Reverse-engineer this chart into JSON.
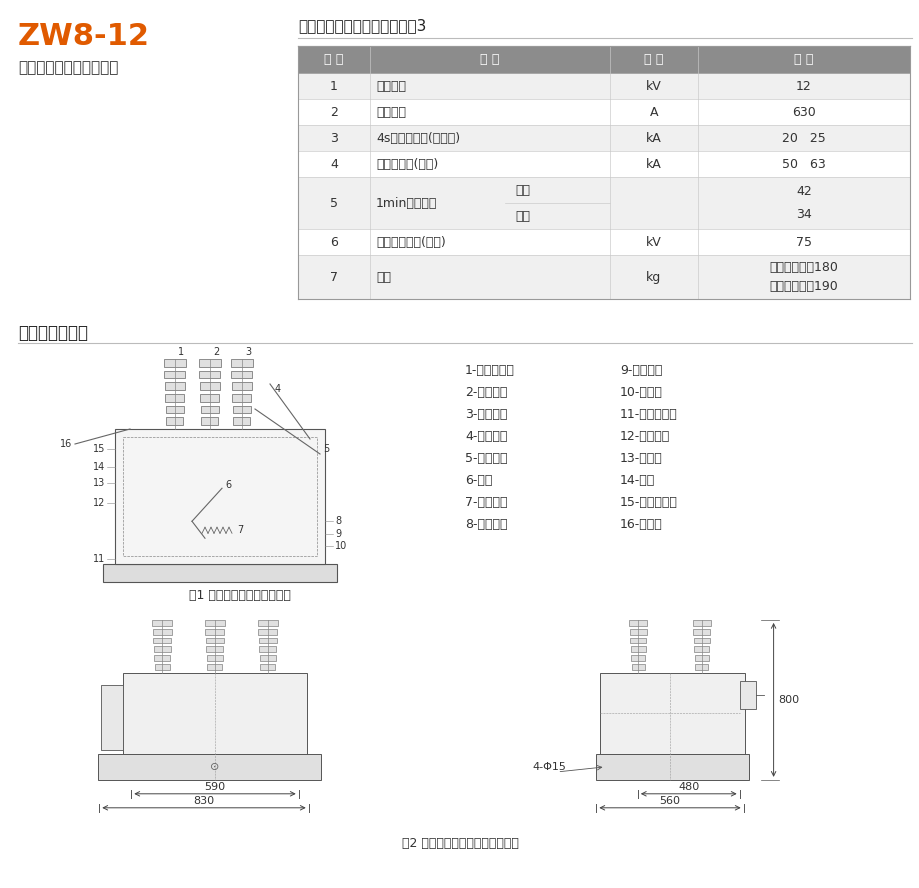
{
  "title_main": "ZW8-12",
  "title_sub": "户外高压交流真空断路器",
  "table_title": "组合断路器主要技术参数见表3",
  "section2_title": "外形及安装尺寸",
  "fig1_caption": "图1 断路器本体内部结构示意",
  "fig2_caption": "图2 断路器外形尺寸及安装尺寸图",
  "header_bg": "#8c8c8c",
  "row_bg_even": "#f0f0f0",
  "row_bg_odd": "#ffffff",
  "title_color": "#e05a00",
  "header_text_color": "#ffffff",
  "table_headers": [
    "序 号",
    "名 称",
    "单 位",
    "数 据"
  ],
  "rows_data": [
    [
      "1",
      "额定电压",
      "",
      "kV",
      "12",
      26
    ],
    [
      "2",
      "额定电流",
      "",
      "A",
      "630",
      26
    ],
    [
      "3",
      "4s热稳定电流(有效值)",
      "",
      "kA",
      "20   25",
      26
    ],
    [
      "4",
      "动稳定电流(峰值)",
      "",
      "kA",
      "50   63",
      26
    ],
    [
      "5",
      "1min工频耐压",
      "干试/湿试",
      "",
      "42/34",
      52
    ],
    [
      "6",
      "雷电冲击耐压(峰值)",
      "",
      "kV",
      "75",
      26
    ],
    [
      "7",
      "质量",
      "",
      "kg",
      "配手动机构：180/配电动机构：190",
      44
    ]
  ],
  "legend_items": [
    [
      "1-分闸缓冲器",
      "9-动端支架"
    ],
    [
      "2-三相转轴",
      "10-软联结"
    ],
    [
      "3-分闸拉杆",
      "11-真空灌弧室"
    ],
    [
      "4-分闸弹簧",
      "12-静端支架"
    ],
    [
      "5-绝缘拉杆",
      "13-绝缘罩"
    ],
    [
      "6-拐臂",
      "14-笱体"
    ],
    [
      "7-触头弹簧",
      "15-电流互感器"
    ],
    [
      "8-触头推杆",
      "16-导电杆"
    ]
  ],
  "dim_590": "590",
  "dim_830": "830",
  "dim_480": "480",
  "dim_560": "560",
  "dim_800": "800",
  "dim_4phi15": "4-Φ15"
}
